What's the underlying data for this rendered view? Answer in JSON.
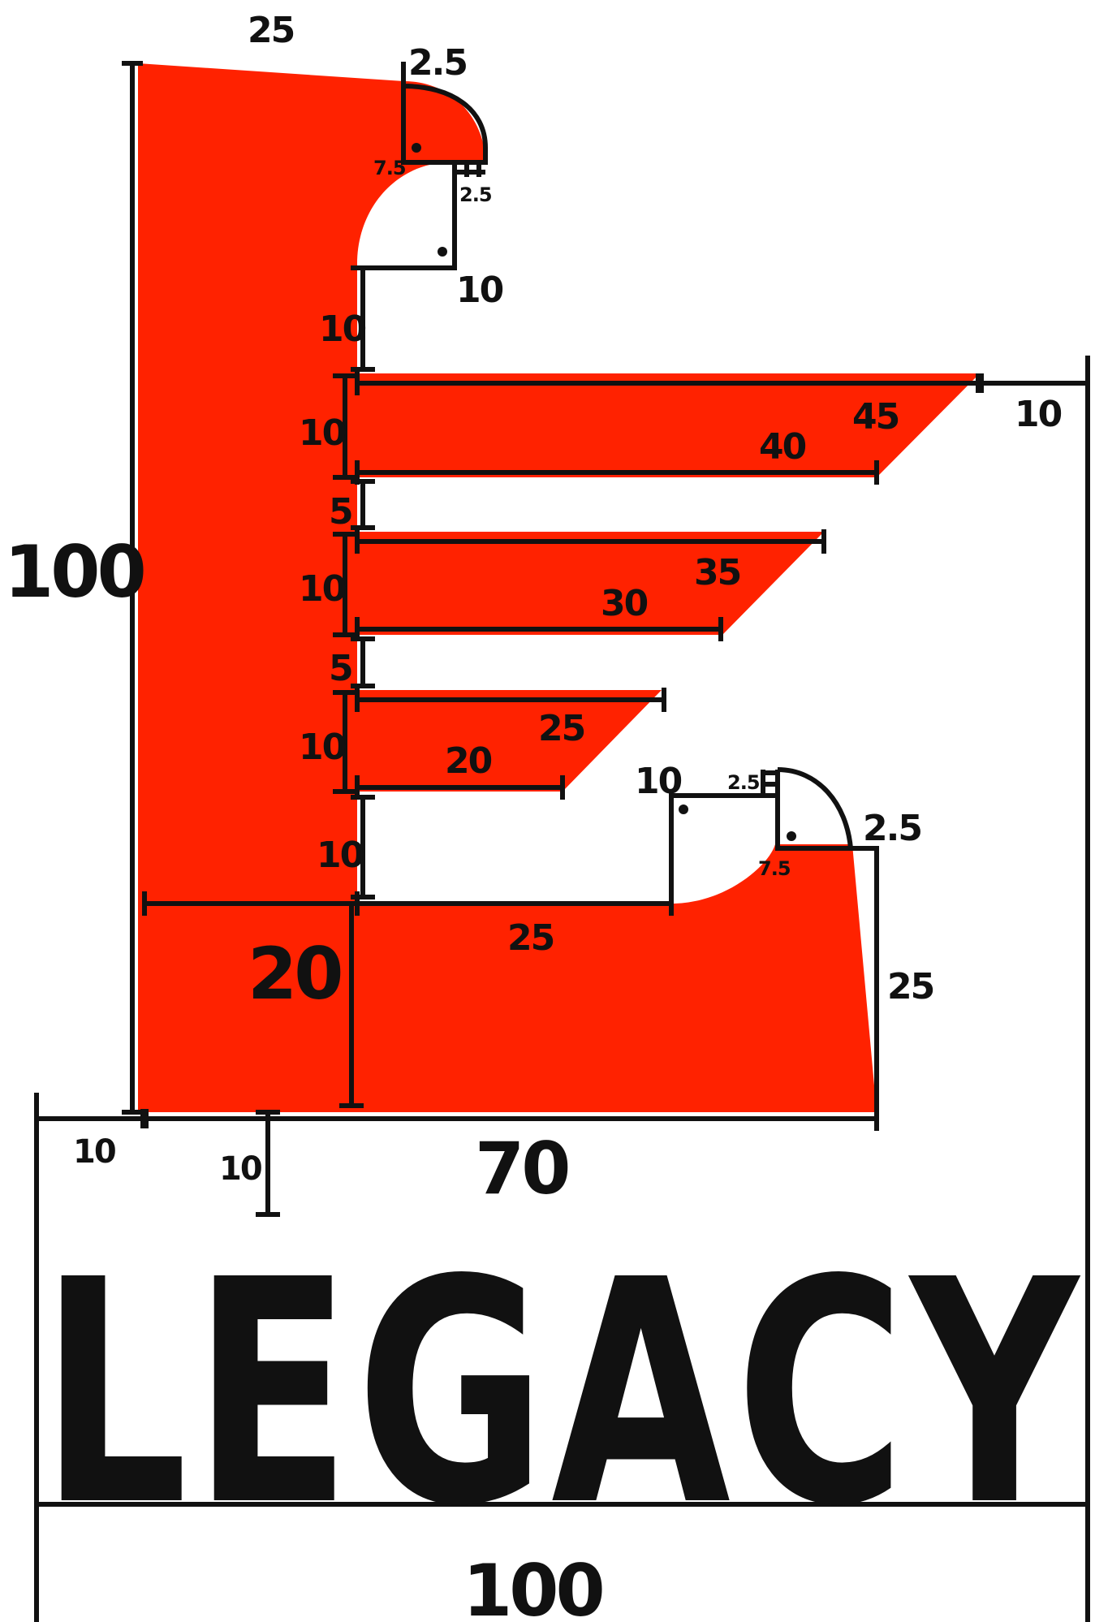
{
  "colors": {
    "accent": "#ff2200",
    "ink": "#111111",
    "background": "#ffffff"
  },
  "labels": {
    "top_width": "25",
    "top_notch": "2.5",
    "top_radius": "7.5",
    "top_lip": "2.5",
    "top_inner": "10",
    "gap_top": "10",
    "height_total": "100",
    "right_margin": "10",
    "bar1_height": "10",
    "bar1_top": "45",
    "bar1_bottom": "40",
    "gap1": "5",
    "bar2_height": "10",
    "bar2_top": "35",
    "bar2_bottom": "30",
    "gap2": "5",
    "bar3_height": "10",
    "bar3_top": "25",
    "bar3_bottom": "20",
    "gap_bottom": "10",
    "bot_inner": "10",
    "bot_lip": "2.5",
    "bot_radius": "7.5",
    "bot_notch": "2.5",
    "base_height": "20",
    "base_gap": "25",
    "base_side": "25",
    "left_margin": "10",
    "title_gap": "10",
    "base_width": "70",
    "total_width": "100"
  },
  "wordmark": "LEGACY"
}
